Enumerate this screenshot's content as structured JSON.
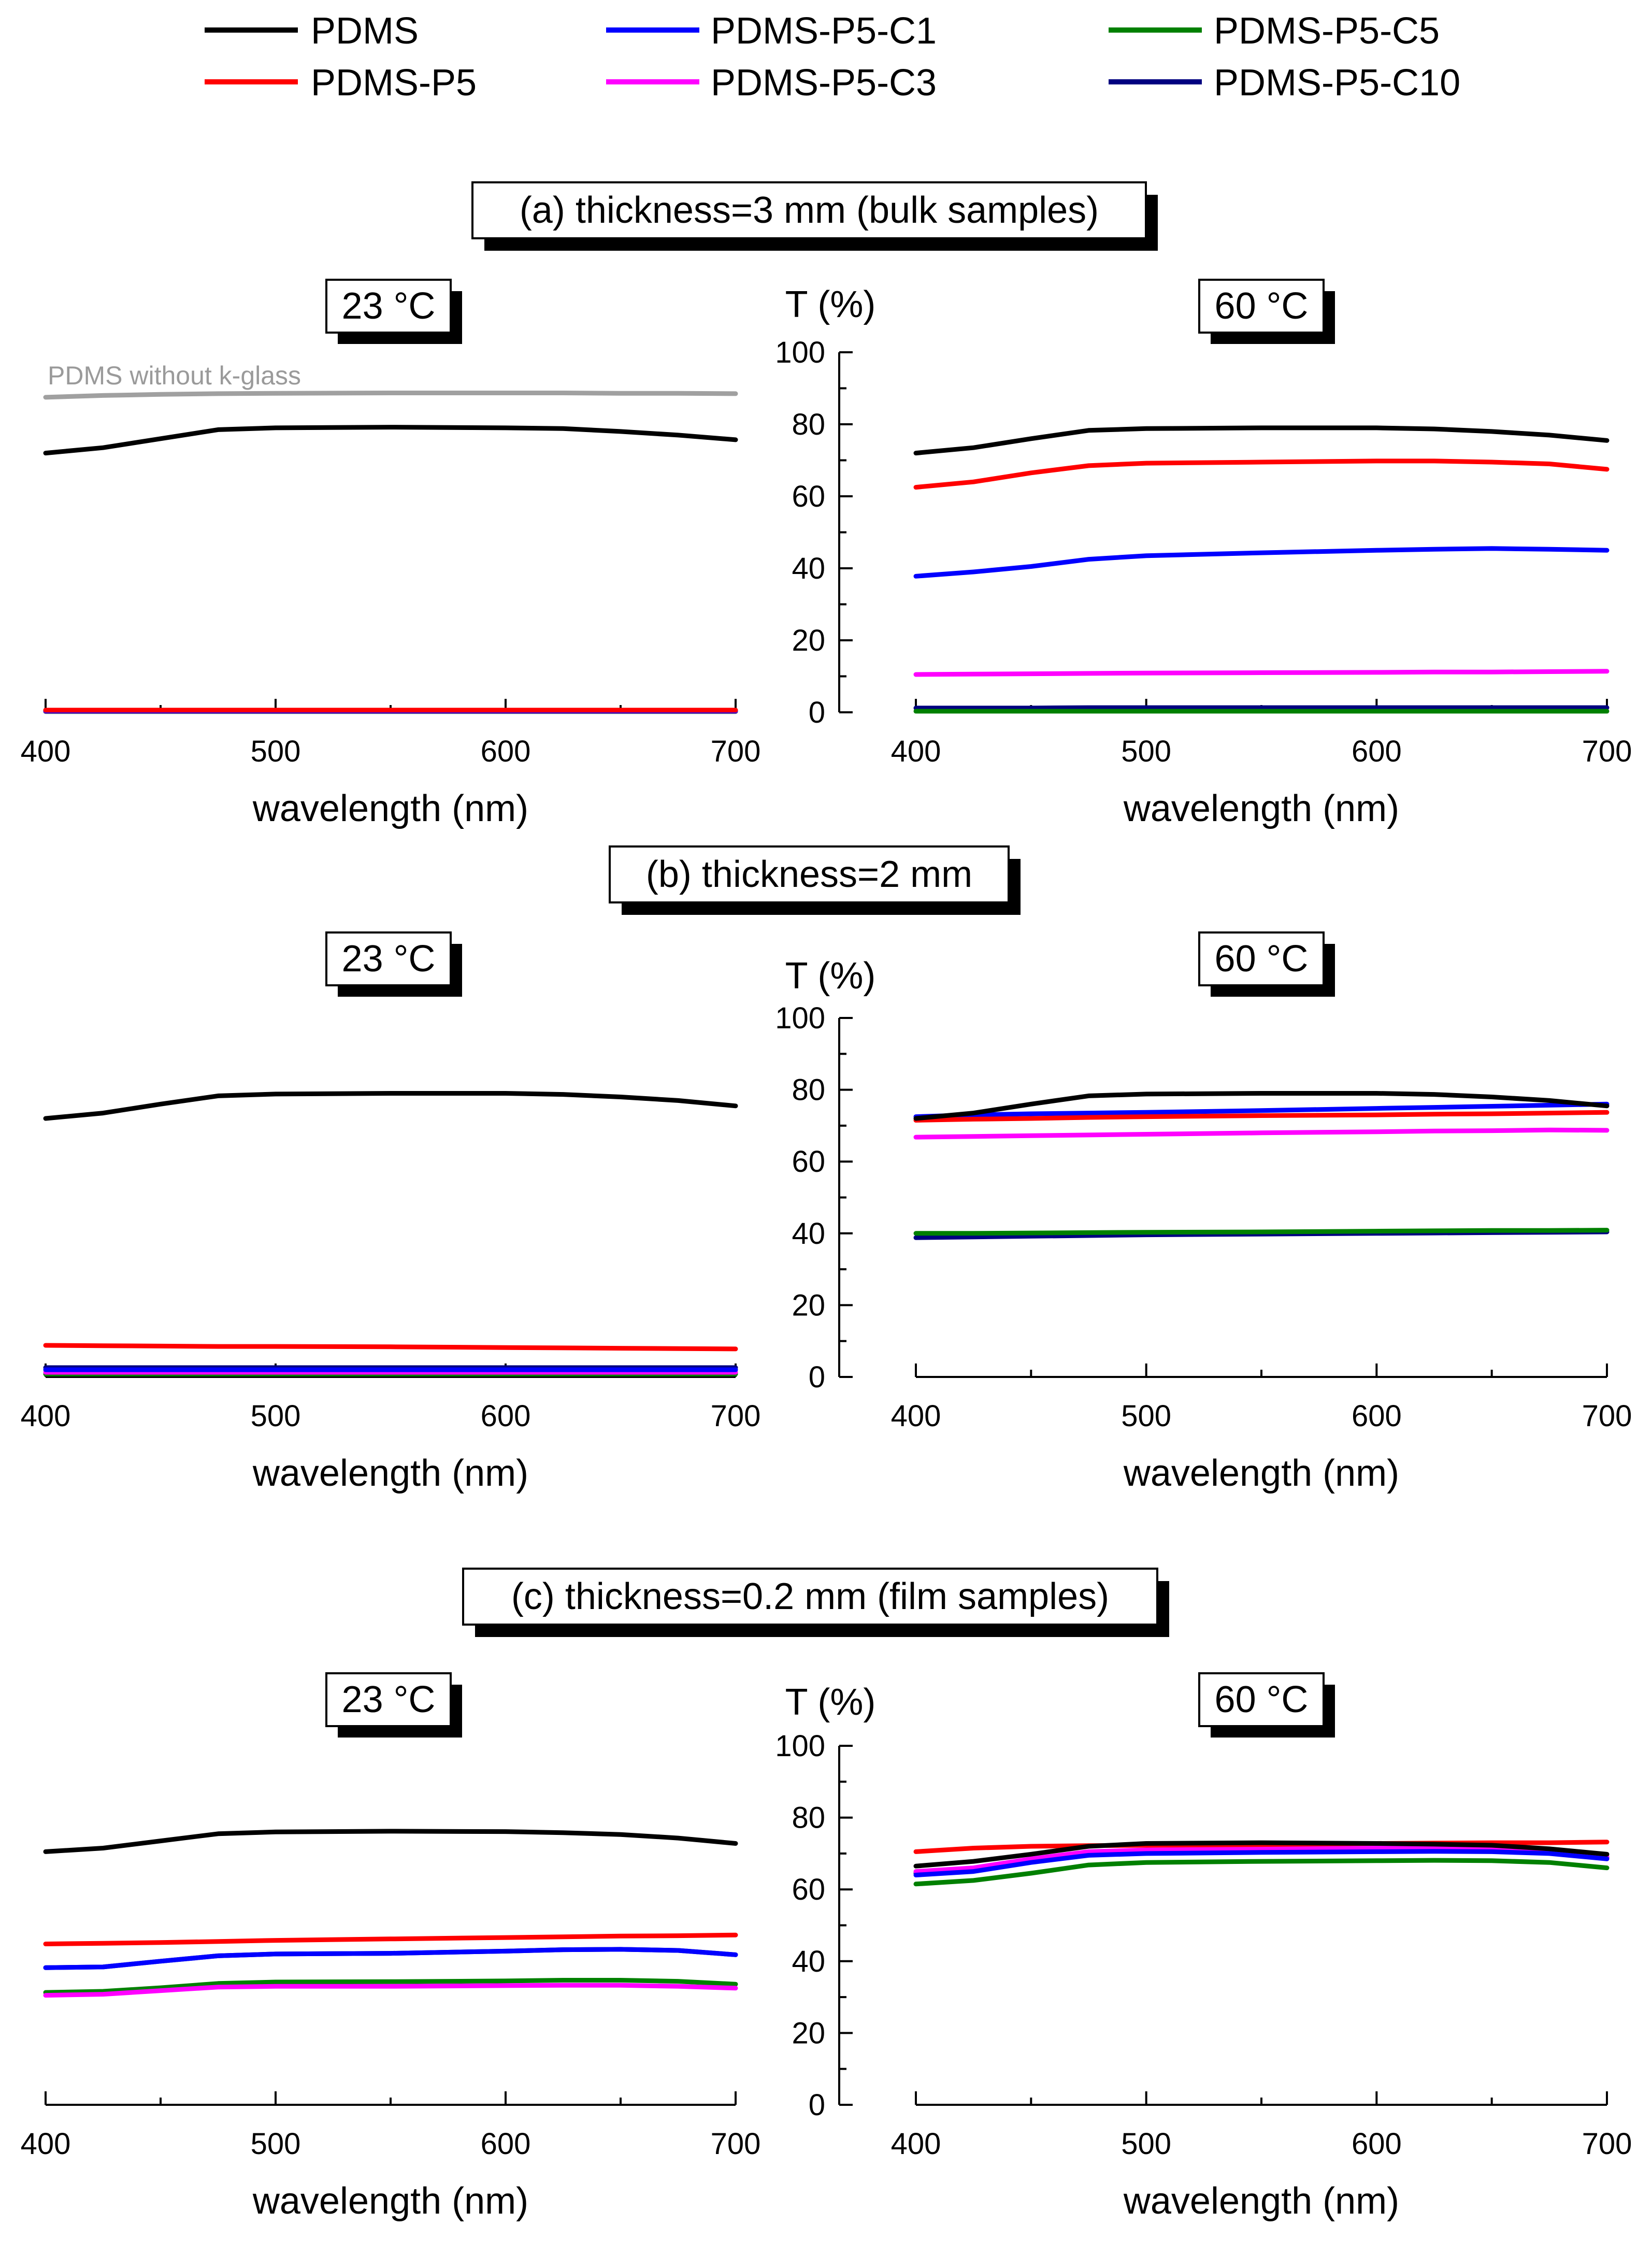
{
  "legend": [
    {
      "name": "PDMS",
      "color": "#000000"
    },
    {
      "name": "PDMS-P5",
      "color": "#ff0000"
    },
    {
      "name": "PDMS-P5-C1",
      "color": "#0000ff"
    },
    {
      "name": "PDMS-P5-C3",
      "color": "#ff00ff"
    },
    {
      "name": "PDMS-P5-C5",
      "color": "#008000"
    },
    {
      "name": "PDMS-P5-C10",
      "color": "#000080"
    }
  ],
  "sections": [
    {
      "title": "(a) thickness=3 mm (bulk samples)"
    },
    {
      "title": "(b) thickness=2 mm"
    },
    {
      "title": "(c) thickness=0.2 mm (film samples)"
    }
  ],
  "temps": {
    "cold": "23 °C",
    "hot": "60 °C"
  },
  "y_axis_title": "T (%)",
  "x_axis_title": "wavelength (nm)",
  "x_ticks": [
    "400",
    "500",
    "600",
    "700"
  ],
  "y_ticks": [
    "0",
    "20",
    "40",
    "60",
    "80",
    "100"
  ],
  "annotation": "PDMS without k-glass",
  "chart_data": [
    {
      "id": "a-23",
      "type": "line",
      "title": "23 °C",
      "section": "(a) thickness=3 mm (bulk samples)",
      "xlabel": "wavelength (nm)",
      "ylabel": "T (%)",
      "xlim": [
        400,
        700
      ],
      "ylim": [
        0,
        100
      ],
      "x": [
        400,
        425,
        450,
        475,
        500,
        550,
        600,
        625,
        650,
        675,
        700
      ],
      "series": [
        {
          "name": "PDMS without k-glass",
          "color": "#a0a0a0",
          "values": [
            87.5,
            88,
            88.3,
            88.5,
            88.6,
            88.7,
            88.7,
            88.7,
            88.6,
            88.6,
            88.5
          ]
        },
        {
          "name": "PDMS",
          "color": "#000000",
          "values": [
            72,
            73.5,
            76,
            78.5,
            79,
            79.2,
            79,
            78.8,
            78,
            77,
            75.7
          ]
        },
        {
          "name": "PDMS-P5",
          "color": "#ff0000",
          "values": [
            0.6,
            0.6,
            0.6,
            0.6,
            0.6,
            0.6,
            0.6,
            0.6,
            0.6,
            0.6,
            0.6
          ]
        },
        {
          "name": "PDMS-P5-C1",
          "color": "#0000ff",
          "values": [
            0.4,
            0.4,
            0.4,
            0.4,
            0.4,
            0.4,
            0.4,
            0.4,
            0.4,
            0.4,
            0.4
          ]
        },
        {
          "name": "PDMS-P5-C3",
          "color": "#ff00ff",
          "values": [
            0.3,
            0.3,
            0.3,
            0.3,
            0.3,
            0.3,
            0.3,
            0.3,
            0.3,
            0.3,
            0.3
          ]
        },
        {
          "name": "PDMS-P5-C5",
          "color": "#008000",
          "values": [
            0.2,
            0.2,
            0.2,
            0.2,
            0.2,
            0.2,
            0.2,
            0.2,
            0.2,
            0.2,
            0.2
          ]
        },
        {
          "name": "PDMS-P5-C10",
          "color": "#000080",
          "values": [
            0.5,
            0.5,
            0.5,
            0.5,
            0.5,
            0.5,
            0.5,
            0.5,
            0.5,
            0.5,
            0.5
          ]
        }
      ]
    },
    {
      "id": "a-60",
      "type": "line",
      "title": "60 °C",
      "section": "(a) thickness=3 mm (bulk samples)",
      "xlabel": "wavelength (nm)",
      "ylabel": "T (%)",
      "xlim": [
        400,
        700
      ],
      "ylim": [
        0,
        100
      ],
      "x": [
        400,
        425,
        450,
        475,
        500,
        550,
        600,
        625,
        650,
        675,
        700
      ],
      "series": [
        {
          "name": "PDMS",
          "color": "#000000",
          "values": [
            72,
            73.5,
            76,
            78.3,
            78.8,
            79,
            79,
            78.7,
            78,
            77,
            75.5
          ]
        },
        {
          "name": "PDMS-P5",
          "color": "#ff0000",
          "values": [
            62.5,
            64,
            66.5,
            68.5,
            69.2,
            69.5,
            69.8,
            69.8,
            69.5,
            69,
            67.5
          ]
        },
        {
          "name": "PDMS-P5-C1",
          "color": "#0000ff",
          "values": [
            37.8,
            39,
            40.5,
            42.5,
            43.5,
            44.3,
            45,
            45.3,
            45.5,
            45.3,
            45
          ]
        },
        {
          "name": "PDMS-P5-C3",
          "color": "#ff00ff",
          "values": [
            10.5,
            10.6,
            10.7,
            10.8,
            10.9,
            11,
            11.1,
            11.2,
            11.2,
            11.3,
            11.4
          ]
        },
        {
          "name": "PDMS-P5-C5",
          "color": "#008000",
          "values": [
            0.3,
            0.3,
            0.3,
            0.3,
            0.3,
            0.3,
            0.3,
            0.3,
            0.3,
            0.3,
            0.3
          ]
        },
        {
          "name": "PDMS-P5-C10",
          "color": "#000080",
          "values": [
            1.2,
            1.2,
            1.2,
            1.3,
            1.3,
            1.3,
            1.3,
            1.3,
            1.3,
            1.3,
            1.3
          ]
        }
      ]
    },
    {
      "id": "b-23",
      "type": "line",
      "title": "23 °C",
      "section": "(b) thickness=2 mm",
      "xlabel": "wavelength (nm)",
      "ylabel": "T (%)",
      "xlim": [
        400,
        700
      ],
      "ylim": [
        0,
        100
      ],
      "x": [
        400,
        425,
        450,
        475,
        500,
        550,
        600,
        625,
        650,
        675,
        700
      ],
      "series": [
        {
          "name": "PDMS",
          "color": "#000000",
          "values": [
            72,
            73.5,
            76,
            78.3,
            78.8,
            79,
            79,
            78.7,
            78,
            77,
            75.5
          ]
        },
        {
          "name": "PDMS-P5",
          "color": "#ff0000",
          "values": [
            8.8,
            8.7,
            8.6,
            8.5,
            8.5,
            8.4,
            8.2,
            8.1,
            8.0,
            7.9,
            7.8
          ]
        },
        {
          "name": "PDMS-P5-C1",
          "color": "#0000ff",
          "values": [
            2.0,
            2.0,
            2.0,
            2.0,
            2.0,
            2.0,
            2.0,
            2.0,
            2.0,
            2.0,
            2.0
          ]
        },
        {
          "name": "PDMS-P5-C3",
          "color": "#ff00ff",
          "values": [
            1.3,
            1.3,
            1.3,
            1.3,
            1.3,
            1.3,
            1.3,
            1.3,
            1.3,
            1.3,
            1.3
          ]
        },
        {
          "name": "PDMS-P5-C5",
          "color": "#008000",
          "values": [
            0.8,
            0.8,
            0.8,
            0.8,
            0.8,
            0.8,
            0.8,
            0.8,
            0.8,
            0.8,
            0.8
          ]
        },
        {
          "name": "PDMS-P5-C10",
          "color": "#000080",
          "values": [
            2.6,
            2.6,
            2.6,
            2.6,
            2.6,
            2.6,
            2.6,
            2.6,
            2.6,
            2.6,
            2.6
          ]
        }
      ]
    },
    {
      "id": "b-60",
      "type": "line",
      "title": "60 °C",
      "section": "(b) thickness=2 mm",
      "xlabel": "wavelength (nm)",
      "ylabel": "T (%)",
      "xlim": [
        400,
        700
      ],
      "ylim": [
        0,
        100
      ],
      "x": [
        400,
        425,
        450,
        475,
        500,
        550,
        600,
        625,
        650,
        675,
        700
      ],
      "series": [
        {
          "name": "PDMS",
          "color": "#000000",
          "values": [
            72,
            73.5,
            76,
            78.3,
            78.8,
            79,
            79,
            78.7,
            78,
            77,
            75.5
          ]
        },
        {
          "name": "PDMS-P5",
          "color": "#ff0000",
          "values": [
            71.5,
            71.8,
            72,
            72.3,
            72.5,
            72.8,
            73,
            73.2,
            73.3,
            73.5,
            73.7
          ]
        },
        {
          "name": "PDMS-P5-C1",
          "color": "#0000ff",
          "values": [
            72.5,
            73,
            73.3,
            73.5,
            73.7,
            74.2,
            74.8,
            75.1,
            75.4,
            75.7,
            76
          ]
        },
        {
          "name": "PDMS-P5-C3",
          "color": "#ff00ff",
          "values": [
            66.8,
            67,
            67.2,
            67.4,
            67.6,
            68,
            68.3,
            68.5,
            68.6,
            68.8,
            68.7
          ]
        },
        {
          "name": "PDMS-P5-C5",
          "color": "#008000",
          "values": [
            40,
            40,
            40.1,
            40.2,
            40.3,
            40.4,
            40.6,
            40.7,
            40.8,
            40.8,
            40.9
          ]
        },
        {
          "name": "PDMS-P5-C10",
          "color": "#000080",
          "values": [
            38.8,
            39,
            39.2,
            39.4,
            39.6,
            39.8,
            40,
            40.1,
            40.2,
            40.3,
            40.4
          ]
        }
      ]
    },
    {
      "id": "c-23",
      "type": "line",
      "title": "23 °C",
      "section": "(c) thickness=0.2 mm (film samples)",
      "xlabel": "wavelength (nm)",
      "ylabel": "T (%)",
      "xlim": [
        400,
        700
      ],
      "ylim": [
        0,
        100
      ],
      "x": [
        400,
        425,
        450,
        475,
        500,
        550,
        600,
        625,
        650,
        675,
        700
      ],
      "series": [
        {
          "name": "PDMS",
          "color": "#000000",
          "values": [
            70.5,
            71.5,
            73.5,
            75.5,
            76,
            76.2,
            76.1,
            75.8,
            75.3,
            74.3,
            72.8
          ]
        },
        {
          "name": "PDMS-P5",
          "color": "#ff0000",
          "values": [
            44.8,
            45,
            45.2,
            45.5,
            45.8,
            46.2,
            46.6,
            46.8,
            47,
            47.1,
            47.3
          ]
        },
        {
          "name": "PDMS-P5-C1",
          "color": "#0000ff",
          "values": [
            38.2,
            38.4,
            40,
            41.5,
            42,
            42.2,
            42.8,
            43.2,
            43.3,
            43,
            41.8
          ]
        },
        {
          "name": "PDMS-P5-C3",
          "color": "#ff00ff",
          "values": [
            30.5,
            30.8,
            31.8,
            32.8,
            33,
            33,
            33.2,
            33.3,
            33.3,
            33,
            32.5
          ]
        },
        {
          "name": "PDMS-P5-C5",
          "color": "#008000",
          "values": [
            31.3,
            31.6,
            32.6,
            33.8,
            34.2,
            34.3,
            34.5,
            34.7,
            34.7,
            34.4,
            33.6
          ]
        },
        {
          "name": "PDMS-P5-C10",
          "color": "#000080",
          "values": [
            38.2,
            38.4,
            40,
            41.5,
            42,
            42.2,
            42.8,
            43.2,
            43.3,
            43,
            41.8
          ]
        }
      ]
    },
    {
      "id": "c-60",
      "type": "line",
      "title": "60 °C",
      "section": "(c) thickness=0.2 mm (film samples)",
      "xlabel": "wavelength (nm)",
      "ylabel": "T (%)",
      "xlim": [
        400,
        700
      ],
      "ylim": [
        0,
        100
      ],
      "x": [
        400,
        425,
        450,
        475,
        500,
        550,
        600,
        625,
        650,
        675,
        700
      ],
      "series": [
        {
          "name": "PDMS",
          "color": "#000000",
          "values": [
            66.5,
            67.8,
            69.8,
            72,
            72.8,
            73,
            72.8,
            72.6,
            72.3,
            71.3,
            69.8
          ]
        },
        {
          "name": "PDMS-P5",
          "color": "#ff0000",
          "values": [
            70.5,
            71.5,
            72,
            72.2,
            72.3,
            72.5,
            72.8,
            72.9,
            73,
            73,
            73.2
          ]
        },
        {
          "name": "PDMS-P5-C1",
          "color": "#0000ff",
          "values": [
            64,
            65,
            67.5,
            69.5,
            70,
            70.3,
            70.5,
            70.6,
            70.5,
            70,
            68.5
          ]
        },
        {
          "name": "PDMS-P5-C3",
          "color": "#ff00ff",
          "values": [
            65,
            66,
            68.5,
            70.5,
            71,
            71.3,
            71.5,
            71.6,
            71.5,
            70.8,
            69.2
          ]
        },
        {
          "name": "PDMS-P5-C5",
          "color": "#008000",
          "values": [
            61.5,
            62.5,
            64.5,
            66.8,
            67.5,
            67.8,
            68,
            68.1,
            68,
            67.5,
            66
          ]
        },
        {
          "name": "PDMS-P5-C10",
          "color": "#000080",
          "values": [
            64.5,
            65.5,
            68,
            70,
            70.5,
            70.8,
            71,
            71.1,
            71,
            70.4,
            68.8
          ]
        }
      ]
    }
  ]
}
